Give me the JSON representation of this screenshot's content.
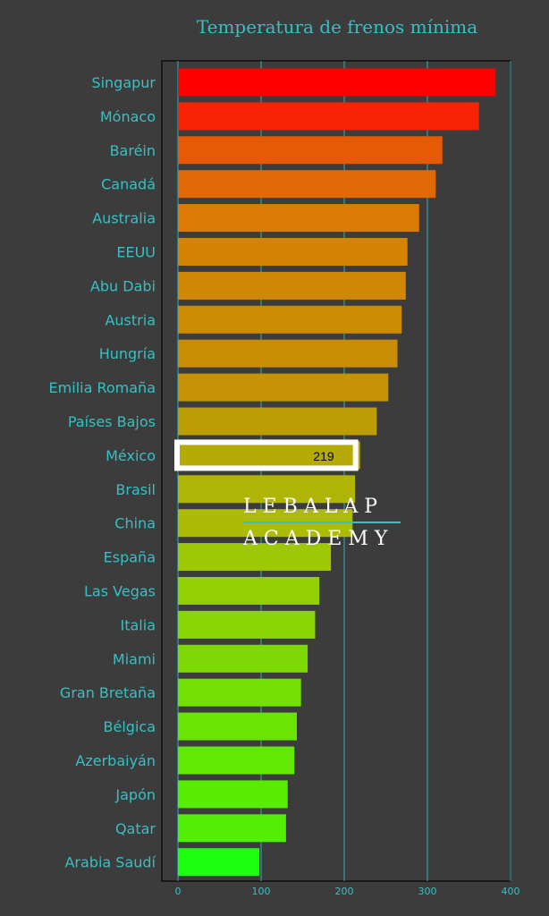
{
  "chart_data": {
    "type": "bar",
    "orientation": "horizontal",
    "title": "Temperatura de frenos mínima",
    "xlim": [
      0,
      400
    ],
    "xticks": [
      0,
      100,
      200,
      300,
      400
    ],
    "grid": "vertical",
    "categories": [
      "Singapur",
      "Mónaco",
      "Baréin",
      "Canadá",
      "Australia",
      "EEUU",
      "Abu Dabi",
      "Austria",
      "Hungría",
      "Emilia Romaña",
      "Países Bajos",
      "México",
      "Brasil",
      "China",
      "España",
      "Las Vegas",
      "Italia",
      "Miami",
      "Gran Bretaña",
      "Bélgica",
      "Azerbaiyán",
      "Japón",
      "Qatar",
      "Arabia Saudí"
    ],
    "values": [
      382,
      362,
      318,
      310,
      290,
      276,
      274,
      269,
      264,
      253,
      239,
      219,
      213,
      210,
      184,
      170,
      165,
      156,
      148,
      143,
      140,
      132,
      130,
      98
    ],
    "colors": [
      "#ff0000",
      "#f72305",
      "#e75a05",
      "#e06805",
      "#dc7a05",
      "#d58305",
      "#d08705",
      "#cc8a05",
      "#c98d05",
      "#c59305",
      "#bd9d05",
      "#b6ab05",
      "#b0b505",
      "#acbb05",
      "#9ec805",
      "#92d005",
      "#8ad505",
      "#7ed805",
      "#73df05",
      "#6ae405",
      "#63e705",
      "#58ec05",
      "#52ee05",
      "#1cff10"
    ],
    "highlight": {
      "category": "México",
      "label": "219"
    }
  },
  "watermark": {
    "line1": "LEBALAP",
    "line2": "ACADEMY"
  },
  "colors": {
    "background": "#3c3c3c",
    "accent": "#35c1c4",
    "frame": "#000000"
  }
}
